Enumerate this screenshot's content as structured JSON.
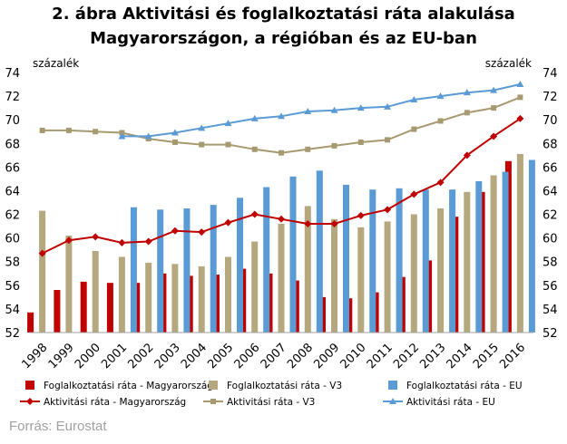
{
  "title_line1": "2. ábra Aktivitási és foglalkoztatási ráta alakulása",
  "title_line2": "Magyarországon,  a régióban és az EU-ban",
  "source": "Forrás: Eurostat",
  "chart_data": {
    "type": "bar",
    "categories": [
      "1998",
      "1999",
      "2000",
      "2001",
      "2002",
      "2003",
      "2004",
      "2005",
      "2006",
      "2007",
      "2008",
      "2009",
      "2010",
      "2011",
      "2012",
      "2013",
      "2014",
      "2015",
      "2016"
    ],
    "ylabel_left": "százalék",
    "ylabel_right": "százalék",
    "ylim": [
      52,
      74
    ],
    "yticks": [
      52,
      54,
      56,
      58,
      60,
      62,
      64,
      66,
      68,
      70,
      72,
      74
    ],
    "grid": false,
    "legend_position": "bottom",
    "bar_series": [
      {
        "name": "Foglalkoztatási ráta - Magyarország",
        "color": "#c00000",
        "values": [
          53.7,
          55.6,
          56.3,
          56.2,
          56.2,
          57.0,
          56.8,
          56.9,
          57.4,
          57.0,
          56.4,
          55.0,
          54.9,
          55.4,
          56.7,
          58.1,
          61.8,
          63.9,
          66.5
        ]
      },
      {
        "name": "Foglalkoztatási ráta - V3",
        "color": "#b5a77e",
        "values": [
          62.3,
          60.2,
          58.9,
          58.4,
          57.9,
          57.8,
          57.6,
          58.4,
          59.7,
          61.2,
          62.7,
          61.6,
          60.9,
          61.4,
          62.0,
          62.5,
          63.9,
          65.3,
          67.1
        ]
      },
      {
        "name": "Foglalkoztatási ráta - EU",
        "color": "#5b9bd5",
        "values": [
          null,
          null,
          null,
          62.6,
          62.4,
          62.5,
          62.8,
          63.4,
          64.3,
          65.2,
          65.7,
          64.5,
          64.1,
          64.2,
          64.1,
          64.1,
          64.8,
          65.6,
          66.6
        ]
      }
    ],
    "line_series": [
      {
        "name": "Aktivitási ráta - Magyarország",
        "color": "#c00000",
        "marker": "diamond",
        "values": [
          58.7,
          59.8,
          60.1,
          59.6,
          59.7,
          60.6,
          60.5,
          61.3,
          62.0,
          61.6,
          61.2,
          61.2,
          61.9,
          62.4,
          63.7,
          64.7,
          67.0,
          68.6,
          70.1
        ]
      },
      {
        "name": "Aktivitási ráta - V3",
        "color": "#a89a70",
        "marker": "square",
        "values": [
          69.1,
          69.1,
          69.0,
          68.9,
          68.4,
          68.1,
          67.9,
          67.9,
          67.5,
          67.2,
          67.5,
          67.8,
          68.1,
          68.3,
          69.2,
          69.9,
          70.6,
          71.0,
          71.9
        ]
      },
      {
        "name": "Aktivitási ráta - EU",
        "color": "#5b9bd5",
        "marker": "triangle",
        "values": [
          null,
          null,
          null,
          68.6,
          68.6,
          68.9,
          69.3,
          69.7,
          70.1,
          70.3,
          70.7,
          70.8,
          71.0,
          71.1,
          71.7,
          72.0,
          72.3,
          72.5,
          73.0
        ]
      }
    ]
  }
}
